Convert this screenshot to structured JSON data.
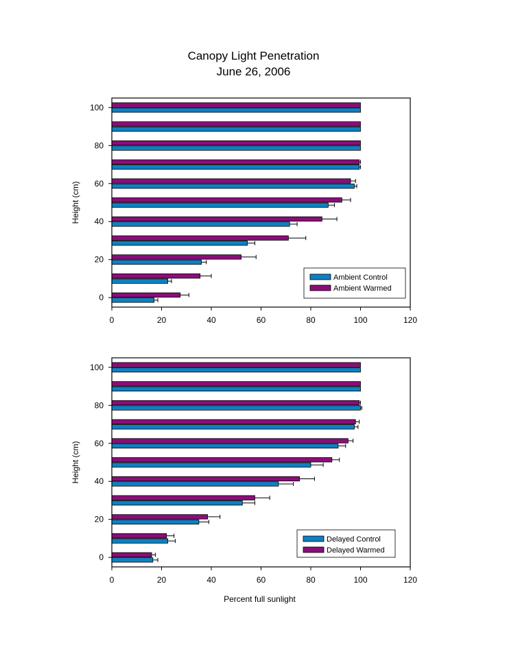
{
  "title_lines": [
    "Canopy Light Penetration",
    "June 26, 2006"
  ],
  "colors": {
    "control": "#0f80c0",
    "warmed": "#8a0e79",
    "axis": "#000000"
  },
  "chart_data": [
    {
      "type": "bar",
      "orientation": "horizontal",
      "title": "Canopy Light Penetration June 26, 2006",
      "ylabel": "Height (cm)",
      "xlabel": "",
      "xlim": [
        0,
        120
      ],
      "ylim": [
        -5,
        105
      ],
      "xticks": [
        0,
        20,
        40,
        60,
        80,
        100,
        120
      ],
      "yticks": [
        0,
        20,
        40,
        60,
        80,
        100
      ],
      "grid": false,
      "legend_position": "bottom-right",
      "heights": [
        0,
        10,
        20,
        30,
        40,
        50,
        60,
        70,
        80,
        90,
        100
      ],
      "series": [
        {
          "name": "Ambient Control",
          "color": "#0f80c0",
          "values": [
            17,
            22.5,
            36,
            54.5,
            71.5,
            87,
            97.5,
            99.5,
            100,
            100,
            100
          ],
          "errors": [
            1.5,
            1.5,
            2,
            3,
            3,
            2.5,
            1,
            0.5,
            0,
            0,
            0
          ]
        },
        {
          "name": "Ambient Warmed",
          "color": "#8a0e79",
          "values": [
            27.5,
            35.5,
            52,
            71,
            84.5,
            92.5,
            96,
            99.5,
            100,
            100,
            100
          ],
          "errors": [
            3.5,
            4.5,
            6,
            7,
            6,
            3.5,
            2,
            0.5,
            0,
            0,
            0
          ]
        }
      ]
    },
    {
      "type": "bar",
      "orientation": "horizontal",
      "ylabel": "Height (cm)",
      "xlabel": "Percent full sunlight",
      "xlim": [
        0,
        120
      ],
      "ylim": [
        -5,
        105
      ],
      "xticks": [
        0,
        20,
        40,
        60,
        80,
        100,
        120
      ],
      "yticks": [
        0,
        20,
        40,
        60,
        80,
        100
      ],
      "grid": false,
      "legend_position": "bottom-right",
      "heights": [
        0,
        10,
        20,
        30,
        40,
        50,
        60,
        70,
        80,
        90,
        100
      ],
      "series": [
        {
          "name": "Delayed Control",
          "color": "#0f80c0",
          "values": [
            16.5,
            22.5,
            35,
            52.5,
            67,
            80,
            91,
            97.5,
            100,
            100,
            100
          ],
          "errors": [
            2,
            3,
            4,
            5,
            6,
            5,
            3,
            1.5,
            0.5,
            0,
            0
          ]
        },
        {
          "name": "Delayed Warmed",
          "color": "#8a0e79",
          "values": [
            16,
            22,
            38.5,
            57.5,
            75.5,
            88.5,
            95,
            98,
            99.5,
            100,
            100
          ],
          "errors": [
            1.5,
            3,
            5,
            6,
            6,
            3,
            2,
            1.5,
            0.5,
            0,
            0
          ]
        }
      ]
    }
  ]
}
